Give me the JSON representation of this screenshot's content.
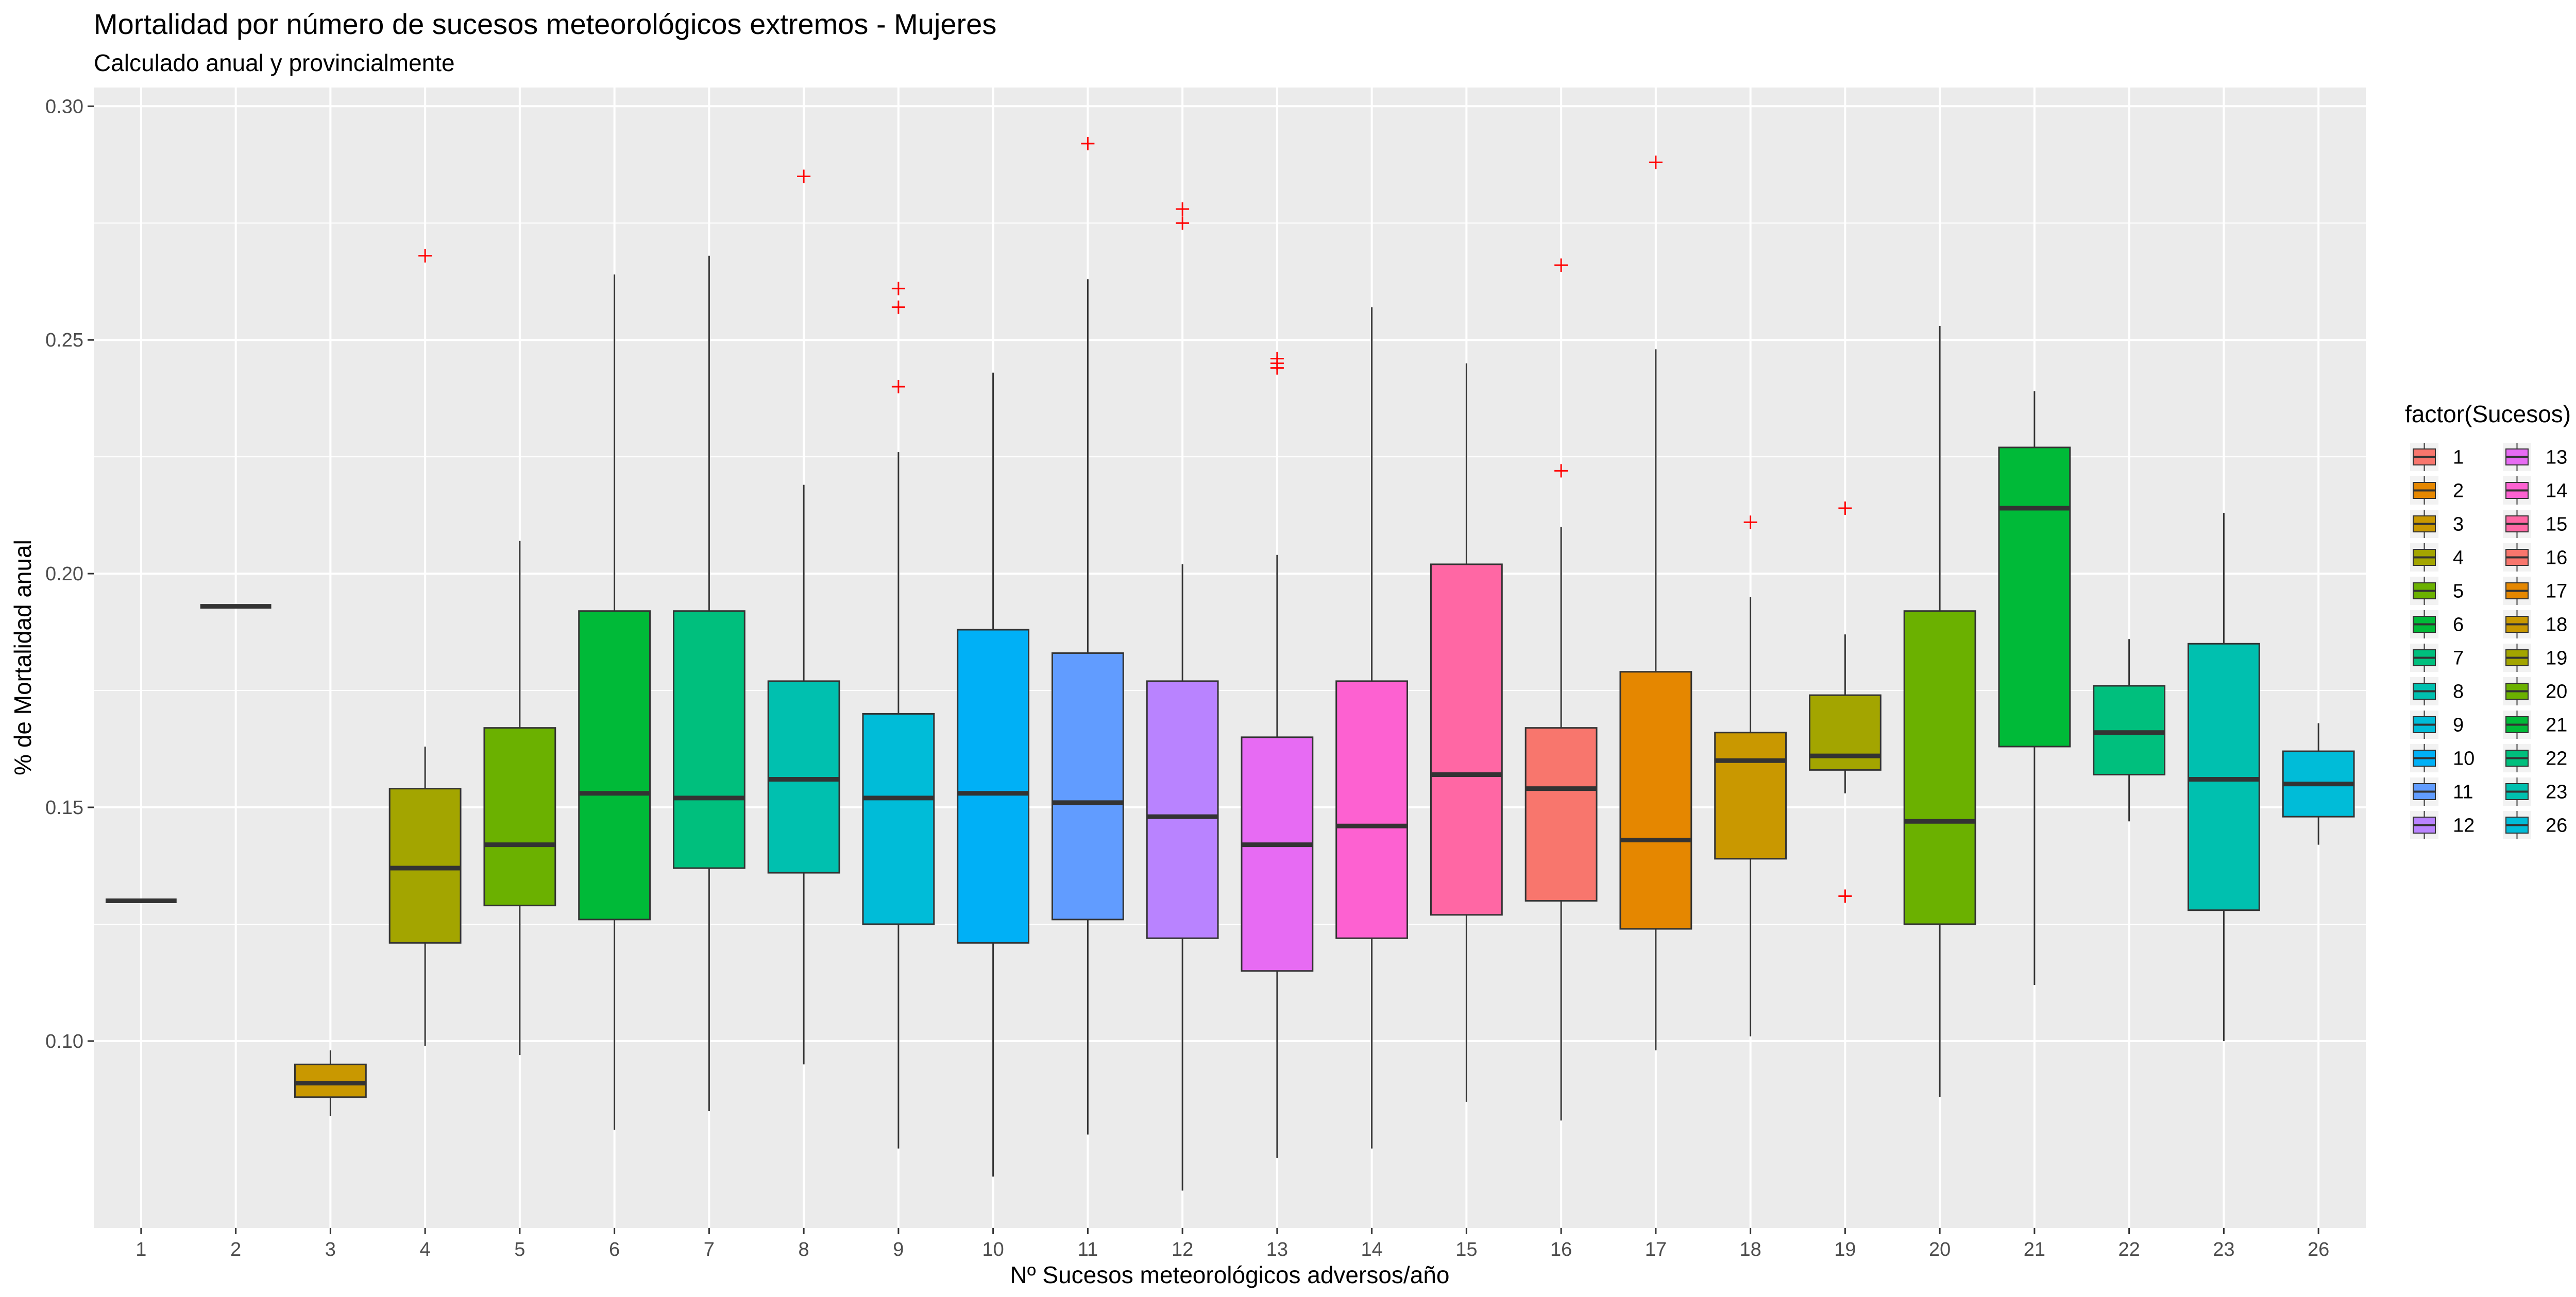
{
  "chart_data": {
    "type": "boxplot",
    "title": "Mortalidad por número de sucesos meteorológicos extremos - Mujeres",
    "subtitle": "Calculado anual y provincialmente",
    "xlabel": "Nº Sucesos meteorológicos adversos/año",
    "ylabel": "% de Mortalidad anual",
    "ylim": [
      0.06,
      0.304
    ],
    "yticks": [
      0.1,
      0.15,
      0.2,
      0.25,
      0.3
    ],
    "ytick_labels": [
      "0.10",
      "0.15",
      "0.20",
      "0.25",
      "0.30"
    ],
    "grid": true,
    "outlier_marker": "+",
    "outlier_color": "#ff0000",
    "legend": {
      "title": "factor(Sucesos)",
      "placement": "right",
      "columns": 2
    },
    "categories": [
      "1",
      "2",
      "3",
      "4",
      "5",
      "6",
      "7",
      "8",
      "9",
      "10",
      "11",
      "12",
      "13",
      "14",
      "15",
      "16",
      "17",
      "18",
      "19",
      "20",
      "21",
      "22",
      "23",
      "26"
    ],
    "colors": [
      "#F8766D",
      "#EA8331",
      "#D89000",
      "#C09B00",
      "#A3A500",
      "#7CAE00",
      "#39B600",
      "#00BB4E",
      "#00BF7D",
      "#00C1A3",
      "#00BFC4",
      "#00BAE0",
      "#00B0F6",
      "#35A2FF",
      "#9590FF",
      "#C77CFF",
      "#E76BF3",
      "#FA62DB",
      "#FF62BC",
      "#FF6C91",
      "#F8766D",
      "#EA8331",
      "#D89000",
      "#C09B00"
    ],
    "series": [
      {
        "category": "1",
        "color": "#F8766D",
        "min": 0.13,
        "q1": 0.13,
        "median": 0.13,
        "q3": 0.13,
        "max": 0.13,
        "outliers": []
      },
      {
        "category": "2",
        "color": "#E58700",
        "min": 0.193,
        "q1": 0.193,
        "median": 0.193,
        "q3": 0.193,
        "max": 0.193,
        "outliers": []
      },
      {
        "category": "3",
        "color": "#C99800",
        "min": 0.084,
        "q1": 0.088,
        "median": 0.091,
        "q3": 0.095,
        "max": 0.098,
        "outliers": []
      },
      {
        "category": "4",
        "color": "#A3A500",
        "min": 0.099,
        "q1": 0.121,
        "median": 0.137,
        "q3": 0.154,
        "max": 0.163,
        "outliers": [
          0.268
        ]
      },
      {
        "category": "5",
        "color": "#6BB100",
        "min": 0.097,
        "q1": 0.129,
        "median": 0.142,
        "q3": 0.167,
        "max": 0.207,
        "outliers": []
      },
      {
        "category": "6",
        "color": "#00BA38",
        "min": 0.081,
        "q1": 0.126,
        "median": 0.153,
        "q3": 0.192,
        "max": 0.264,
        "outliers": []
      },
      {
        "category": "7",
        "color": "#00BF7D",
        "min": 0.085,
        "q1": 0.137,
        "median": 0.152,
        "q3": 0.192,
        "max": 0.268,
        "outliers": []
      },
      {
        "category": "8",
        "color": "#00C0AF",
        "min": 0.095,
        "q1": 0.136,
        "median": 0.156,
        "q3": 0.177,
        "max": 0.219,
        "outliers": [
          0.285
        ]
      },
      {
        "category": "9",
        "color": "#00BCD8",
        "min": 0.077,
        "q1": 0.125,
        "median": 0.152,
        "q3": 0.17,
        "max": 0.226,
        "outliers": [
          0.261,
          0.257,
          0.24
        ]
      },
      {
        "category": "10",
        "color": "#00B0F6",
        "min": 0.071,
        "q1": 0.121,
        "median": 0.153,
        "q3": 0.188,
        "max": 0.243,
        "outliers": []
      },
      {
        "category": "11",
        "color": "#619CFF",
        "min": 0.08,
        "q1": 0.126,
        "median": 0.151,
        "q3": 0.183,
        "max": 0.263,
        "outliers": [
          0.292
        ]
      },
      {
        "category": "12",
        "color": "#B983FF",
        "min": 0.068,
        "q1": 0.122,
        "median": 0.148,
        "q3": 0.177,
        "max": 0.202,
        "outliers": [
          0.278,
          0.275
        ]
      },
      {
        "category": "13",
        "color": "#E76BF3",
        "min": 0.075,
        "q1": 0.115,
        "median": 0.142,
        "q3": 0.165,
        "max": 0.204,
        "outliers": [
          0.246,
          0.245,
          0.244
        ]
      },
      {
        "category": "14",
        "color": "#FD61D1",
        "min": 0.077,
        "q1": 0.122,
        "median": 0.146,
        "q3": 0.177,
        "max": 0.257,
        "outliers": []
      },
      {
        "category": "15",
        "color": "#FF67A4",
        "min": 0.087,
        "q1": 0.127,
        "median": 0.157,
        "q3": 0.202,
        "max": 0.245,
        "outliers": []
      },
      {
        "category": "16",
        "color": "#F8766D",
        "min": 0.083,
        "q1": 0.13,
        "median": 0.154,
        "q3": 0.167,
        "max": 0.21,
        "outliers": [
          0.266,
          0.222
        ]
      },
      {
        "category": "17",
        "color": "#E58700",
        "min": 0.098,
        "q1": 0.124,
        "median": 0.143,
        "q3": 0.179,
        "max": 0.248,
        "outliers": [
          0.288
        ]
      },
      {
        "category": "18",
        "color": "#C99800",
        "min": 0.101,
        "q1": 0.139,
        "median": 0.16,
        "q3": 0.166,
        "max": 0.195,
        "outliers": [
          0.211
        ]
      },
      {
        "category": "19",
        "color": "#A3A500",
        "min": 0.153,
        "q1": 0.158,
        "median": 0.161,
        "q3": 0.174,
        "max": 0.187,
        "outliers": [
          0.214,
          0.131
        ]
      },
      {
        "category": "20",
        "color": "#6BB100",
        "min": 0.088,
        "q1": 0.125,
        "median": 0.147,
        "q3": 0.192,
        "max": 0.253,
        "outliers": []
      },
      {
        "category": "21",
        "color": "#00BA38",
        "min": 0.112,
        "q1": 0.163,
        "median": 0.214,
        "q3": 0.227,
        "max": 0.239,
        "outliers": []
      },
      {
        "category": "22",
        "color": "#00BF7D",
        "min": 0.147,
        "q1": 0.157,
        "median": 0.166,
        "q3": 0.176,
        "max": 0.186,
        "outliers": []
      },
      {
        "category": "23",
        "color": "#00C0AF",
        "min": 0.1,
        "q1": 0.128,
        "median": 0.156,
        "q3": 0.185,
        "max": 0.213,
        "outliers": []
      },
      {
        "category": "26",
        "color": "#00BCD8",
        "min": 0.142,
        "q1": 0.148,
        "median": 0.155,
        "q3": 0.162,
        "max": 0.168,
        "outliers": []
      }
    ]
  }
}
